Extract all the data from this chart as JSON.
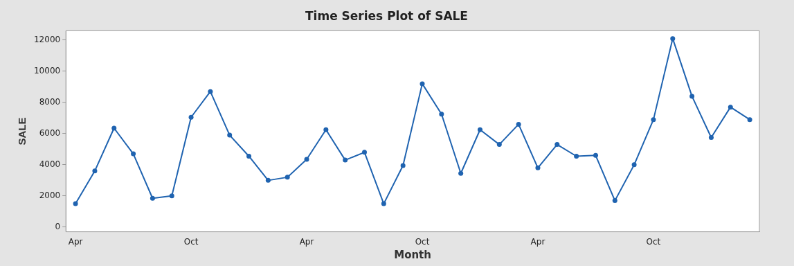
{
  "chart_data": {
    "type": "line",
    "title": "Time Series Plot of SALE",
    "xlabel": "Month",
    "ylabel": "SALE",
    "categories": [
      "Apr",
      null,
      null,
      null,
      null,
      null,
      "Oct",
      null,
      null,
      null,
      null,
      null,
      "Apr",
      null,
      null,
      null,
      null,
      null,
      "Oct",
      null,
      null,
      null,
      null,
      null,
      "Apr",
      null,
      null,
      null,
      null,
      null,
      "Oct",
      null,
      null,
      null,
      null,
      null
    ],
    "series": [
      {
        "color": "#1f63b0",
        "values": [
          1500,
          3600,
          6350,
          4700,
          1850,
          2000,
          7050,
          8700,
          5900,
          4550,
          3000,
          3200,
          4350,
          6250,
          4300,
          4800,
          1500,
          3950,
          9200,
          7250,
          3450,
          6250,
          5300,
          6600,
          3800,
          5300,
          4550,
          4600,
          1700,
          4000,
          6900,
          12100,
          8400,
          5750,
          7700,
          6900
        ]
      }
    ],
    "ylim": [
      -300,
      12600
    ],
    "yticks": [
      0,
      2000,
      4000,
      6000,
      8000,
      10000,
      12000
    ],
    "grid": false,
    "legend": false,
    "marker": "circle",
    "line_style": "solid"
  }
}
